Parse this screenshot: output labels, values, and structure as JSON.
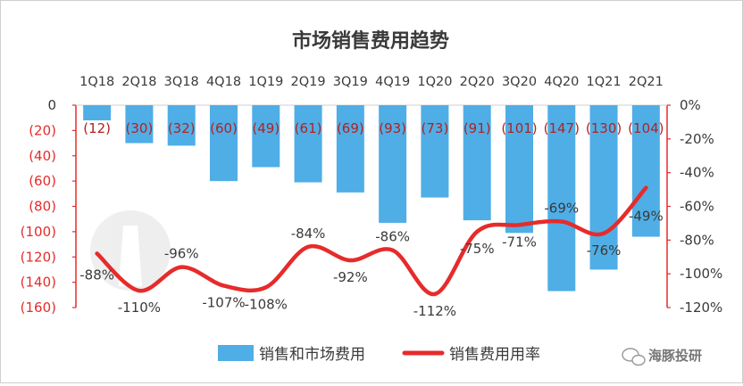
{
  "chart_data": {
    "type": "bar",
    "title": "市场销售费用趋势",
    "categories": [
      "1Q18",
      "2Q18",
      "3Q18",
      "4Q18",
      "1Q19",
      "2Q19",
      "3Q19",
      "4Q19",
      "1Q20",
      "2Q20",
      "3Q20",
      "4Q20",
      "1Q21",
      "2Q21"
    ],
    "series": [
      {
        "name": "销售和市场费用",
        "type": "bar",
        "axis": "left",
        "values": [
          -12,
          -30,
          -32,
          -60,
          -49,
          -61,
          -69,
          -93,
          -73,
          -91,
          -101,
          -147,
          -130,
          -104
        ],
        "labels": [
          "(12)",
          "(30)",
          "(32)",
          "(60)",
          "(49)",
          "(61)",
          "(69)",
          "(93)",
          "(73)",
          "(91)",
          "(101)",
          "(147)",
          "(130)",
          "(104)"
        ],
        "color": "#4FAEE6"
      },
      {
        "name": "销售费用用率",
        "type": "line",
        "axis": "right",
        "values": [
          -88,
          -110,
          -96,
          -107,
          -108,
          -84,
          -92,
          -86,
          -112,
          -75,
          -71,
          -69,
          -76,
          -49
        ],
        "labels": [
          "-88%",
          "-110%",
          "-96%",
          "-107%",
          "-108%",
          "-84%",
          "-92%",
          "-86%",
          "-112%",
          "-75%",
          "-71%",
          "-69%",
          "-76%",
          "-49%"
        ],
        "color": "#E62B2B"
      }
    ],
    "left_axis": {
      "ticks": [
        "0",
        "(20)",
        "(40)",
        "(60)",
        "(80)",
        "(100)",
        "(120)",
        "(140)",
        "(160)"
      ],
      "ylim": [
        -160,
        0
      ]
    },
    "right_axis": {
      "ticks": [
        "0%",
        "-20%",
        "-40%",
        "-60%",
        "-80%",
        "-100%",
        "-120%"
      ],
      "ylim": [
        -120,
        0
      ]
    },
    "legend_position": "bottom",
    "gridlines": false,
    "category_axis_position": "top",
    "accent_color": "#E62B2B",
    "label_color": "#B22222"
  },
  "watermark": {
    "brand": "海豚投研"
  }
}
